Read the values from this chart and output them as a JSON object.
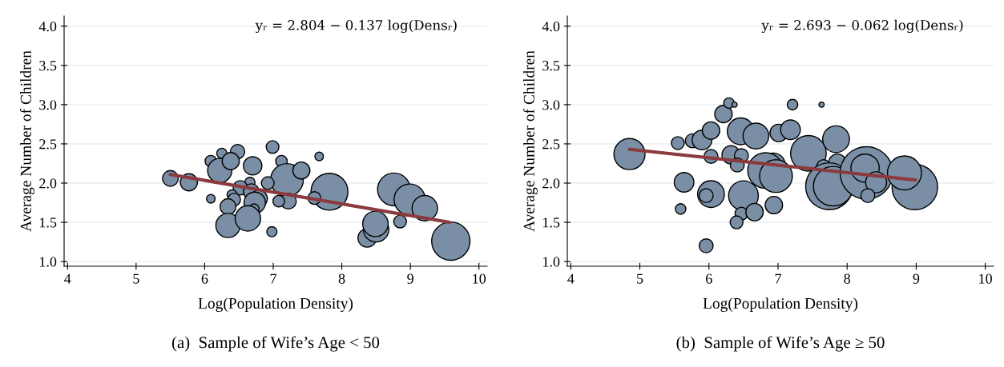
{
  "chart_data": [
    {
      "type": "bubble",
      "xlabel": "Log(Population Density)",
      "ylabel": "Average Number of Children",
      "annotations": [
        "yᵣ = 2.804 − 0.137 log(Densᵣ)",
        "(a)  Sample of Wife’s Age < 50"
      ],
      "xlim": [
        3.95,
        10.12
      ],
      "ylim": [
        0.94,
        4.13
      ],
      "xticks": [
        4,
        5,
        6,
        7,
        8,
        9,
        10
      ],
      "yticks": [
        {
          "value": 1,
          "label": "1.0"
        },
        {
          "value": 1.5,
          "label": "1.5"
        },
        {
          "value": 2,
          "label": "2.0"
        },
        {
          "value": 2.5,
          "label": "2.5"
        },
        {
          "value": 3,
          "label": "3.0"
        },
        {
          "value": 3.5,
          "label": "3.5"
        },
        {
          "value": 4,
          "label": "4.0"
        }
      ],
      "grid": "y",
      "legend": false,
      "series": [
        {
          "color": "#7a8fa6",
          "x": [
            5.5,
            5.77,
            6.09,
            6.09,
            6.25,
            6.48,
            6.22,
            6.38,
            6.7,
            6.99,
            7.12,
            7.2,
            7.41,
            7.67,
            7.82,
            7.6,
            7.22,
            7.08,
            6.92,
            6.66,
            6.52,
            6.68,
            6.79,
            6.73,
            6.4,
            6.43,
            6.34,
            6.72,
            6.34,
            6.63,
            6.98,
            8.37,
            8.5,
            8.49,
            8.76,
            8.99,
            9.21,
            8.85,
            9.59
          ],
          "values": [
            2.06,
            2.01,
            1.8,
            2.28,
            2.38,
            2.4,
            2.16,
            2.28,
            2.22,
            2.46,
            2.28,
            2.04,
            2.16,
            2.34,
            1.89,
            1.81,
            1.77,
            1.77,
            2.0,
            2.01,
            1.94,
            1.89,
            1.8,
            1.75,
            1.85,
            1.79,
            1.7,
            1.67,
            1.46,
            1.55,
            1.38,
            1.3,
            1.41,
            1.48,
            1.92,
            1.79,
            1.68,
            1.51,
            1.26
          ],
          "sizes": [
            0.17,
            0.2,
            0.05,
            0.09,
            0.07,
            0.14,
            0.4,
            0.2,
            0.23,
            0.11,
            0.09,
            0.73,
            0.2,
            0.05,
            0.93,
            0.11,
            0.17,
            0.09,
            0.11,
            0.07,
            0.14,
            0.17,
            0.2,
            0.31,
            0.07,
            0.11,
            0.17,
            0.07,
            0.4,
            0.44,
            0.07,
            0.23,
            0.44,
            0.44,
            0.73,
            0.66,
            0.44,
            0.11,
            1
          ]
        },
        {
          "type": "line",
          "color": "#8b3a3e",
          "x": [
            5.5,
            9.57
          ],
          "values": [
            2.11,
            1.5
          ]
        }
      ]
    },
    {
      "type": "bubble",
      "xlabel": "Log(Population Density)",
      "ylabel": "Average Number of Children",
      "annotations": [
        "yᵣ = 2.693 − 0.062 log(Densᵣ)",
        "(b)  Sample of Wife’s Age ≥ 50"
      ],
      "xlim": [
        3.95,
        10.12
      ],
      "ylim": [
        0.94,
        4.13
      ],
      "xticks": [
        4,
        5,
        6,
        7,
        8,
        9,
        10
      ],
      "yticks": [
        {
          "value": 1,
          "label": "1.0"
        },
        {
          "value": 1.5,
          "label": "1.5"
        },
        {
          "value": 2,
          "label": "2.0"
        },
        {
          "value": 2.5,
          "label": "2.5"
        },
        {
          "value": 3,
          "label": "3.0"
        },
        {
          "value": 3.5,
          "label": "3.5"
        },
        {
          "value": 4,
          "label": "4.0"
        }
      ],
      "grid": "y",
      "legend": false,
      "series": [
        {
          "color": "#7a8fa6",
          "x": [
            4.85,
            5.55,
            5.76,
            5.9,
            6.03,
            6.21,
            6.29,
            6.37,
            6.03,
            6.32,
            6.46,
            6.68,
            6.47,
            6.41,
            6.93,
            6.82,
            7.01,
            7.18,
            7.21,
            7.63,
            7.44,
            7.84,
            7.66,
            7.86,
            7.74,
            7.8,
            8.28,
            8.26,
            8.42,
            8.3,
            8.98,
            8.83,
            5.64,
            6.03,
            5.96,
            6.5,
            5.59,
            6.47,
            6.66,
            6.94,
            6.4,
            5.96,
            6.97
          ],
          "values": [
            2.37,
            2.51,
            2.54,
            2.55,
            2.67,
            2.88,
            3.02,
            3.0,
            2.34,
            2.36,
            2.66,
            2.6,
            2.35,
            2.23,
            2.23,
            2.16,
            2.64,
            2.68,
            3.0,
            3.0,
            2.38,
            2.56,
            2.21,
            2.26,
            1.96,
            1.96,
            2.13,
            2.19,
            2.01,
            1.84,
            1.95,
            2.13,
            2.01,
            1.86,
            1.84,
            1.84,
            1.67,
            1.61,
            1.63,
            1.72,
            1.5,
            1.2,
            2.09
          ],
          "sizes": [
            0.35,
            0.06,
            0.07,
            0.14,
            0.11,
            0.11,
            0.04,
            0.01,
            0.07,
            0.12,
            0.26,
            0.24,
            0.07,
            0.07,
            0.21,
            0.46,
            0.11,
            0.14,
            0.04,
            0.01,
            0.46,
            0.26,
            0.07,
            0.11,
            0.8,
            0.57,
            1,
            0.29,
            0.16,
            0.07,
            0.75,
            0.42,
            0.14,
            0.26,
            0.07,
            0.32,
            0.04,
            0.06,
            0.11,
            0.11,
            0.06,
            0.07,
            0.39
          ]
        },
        {
          "type": "line",
          "color": "#8b3a3e",
          "x": [
            4.85,
            8.99
          ],
          "values": [
            2.43,
            2.04
          ]
        }
      ]
    }
  ]
}
